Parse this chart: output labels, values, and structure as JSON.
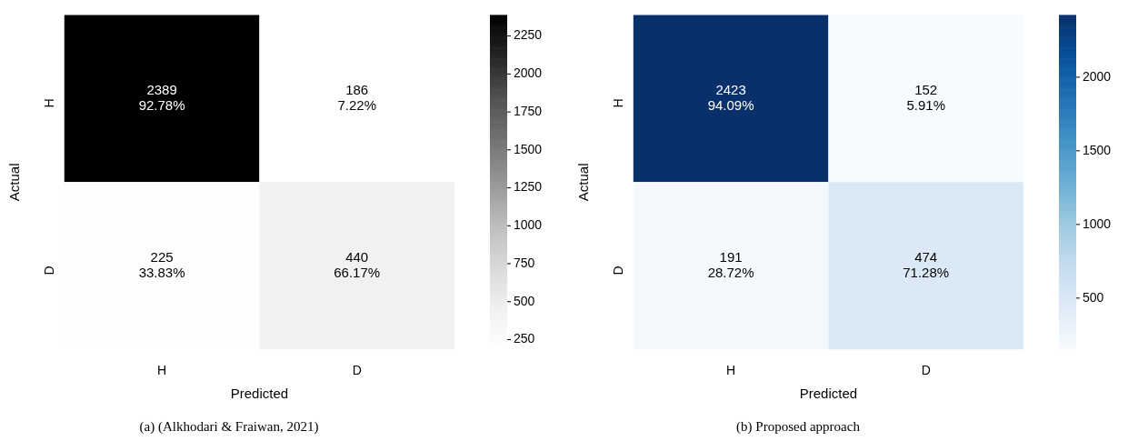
{
  "chart_data": [
    {
      "type": "heatmap",
      "title": "(a) (Alkhodari & Fraiwan, 2021)",
      "xlabel": "Predicted",
      "ylabel": "Actual",
      "categories": [
        "H",
        "D"
      ],
      "y_categories": [
        "H",
        "D"
      ],
      "cells": [
        [
          2389,
          186
        ],
        [
          225,
          440
        ]
      ],
      "cell_labels": [
        [
          "2389\n92.78%",
          "186\n7.22%"
        ],
        [
          "225\n33.83%",
          "440\n66.17%"
        ]
      ],
      "clim": [
        186,
        2389
      ],
      "cticks": [
        250,
        500,
        750,
        1000,
        1250,
        1500,
        1750,
        2000,
        2250
      ]
    },
    {
      "type": "heatmap",
      "title": "(b) Proposed approach",
      "xlabel": "Predicted",
      "ylabel": "Actual",
      "categories": [
        "H",
        "D"
      ],
      "y_categories": [
        "H",
        "D"
      ],
      "cells": [
        [
          2423,
          152
        ],
        [
          191,
          474
        ]
      ],
      "cell_labels": [
        [
          "2423\n94.09%",
          "152\n5.91%"
        ],
        [
          "191\n28.72%",
          "474\n71.28%"
        ]
      ],
      "clim": [
        152,
        2423
      ],
      "cticks": [
        500,
        1000,
        1500,
        2000
      ]
    }
  ]
}
